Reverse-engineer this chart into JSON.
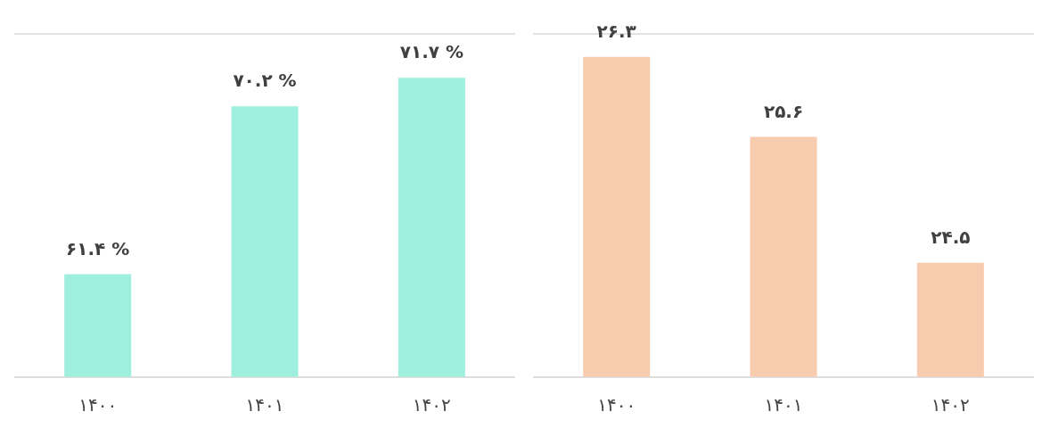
{
  "chart_data": [
    {
      "type": "bar",
      "categories": [
        "۱۴۰۰",
        "۱۴۰۱",
        "۱۴۰۲"
      ],
      "values": [
        61.4,
        70.2,
        71.7
      ],
      "color": "#9eefdd",
      "value_labels": [
        "۶۱.۴ %",
        "۷۰.۲ %",
        "۷۱.۷ %"
      ],
      "ylim": [
        56,
        74
      ],
      "grid": "y",
      "tick_labels": "x"
    },
    {
      "type": "bar",
      "categories": [
        "۱۴۰۰",
        "۱۴۰۱",
        "۱۴۰۲"
      ],
      "values": [
        26.3,
        25.6,
        24.5
      ],
      "color": "#f7cbae",
      "value_labels": [
        "۲۶.۳",
        "۲۵.۶",
        "۲۴.۵"
      ],
      "ylim": [
        23.5,
        26.5
      ],
      "grid": "y",
      "tick_labels": "x"
    }
  ]
}
